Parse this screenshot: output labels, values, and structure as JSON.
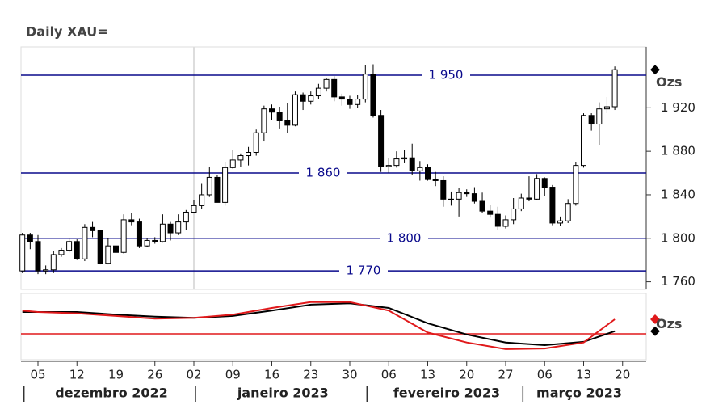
{
  "chart_data": [
    {
      "type": "candlestick",
      "title": "Daily XAU=",
      "axis_label": "Ozs",
      "x": [
        "2022-12-01",
        "2022-12-02",
        "2022-12-05",
        "2022-12-06",
        "2022-12-07",
        "2022-12-08",
        "2022-12-09",
        "2022-12-12",
        "2022-12-13",
        "2022-12-14",
        "2022-12-15",
        "2022-12-16",
        "2022-12-19",
        "2022-12-20",
        "2022-12-21",
        "2022-12-22",
        "2022-12-23",
        "2022-12-26",
        "2022-12-27",
        "2022-12-28",
        "2022-12-29",
        "2022-12-30",
        "2023-01-02",
        "2023-01-03",
        "2023-01-04",
        "2023-01-05",
        "2023-01-06",
        "2023-01-09",
        "2023-01-10",
        "2023-01-11",
        "2023-01-12",
        "2023-01-13",
        "2023-01-16",
        "2023-01-17",
        "2023-01-18",
        "2023-01-19",
        "2023-01-20",
        "2023-01-23",
        "2023-01-24",
        "2023-01-25",
        "2023-01-26",
        "2023-01-27",
        "2023-01-30",
        "2023-01-31",
        "2023-02-01",
        "2023-02-02",
        "2023-02-03",
        "2023-02-06",
        "2023-02-07",
        "2023-02-08",
        "2023-02-09",
        "2023-02-10",
        "2023-02-13",
        "2023-02-14",
        "2023-02-15",
        "2023-02-16",
        "2023-02-17",
        "2023-02-20",
        "2023-02-21",
        "2023-02-22",
        "2023-02-23",
        "2023-02-24",
        "2023-02-27",
        "2023-02-28",
        "2023-03-01",
        "2023-03-02",
        "2023-03-03",
        "2023-03-06",
        "2023-03-07",
        "2023-03-08",
        "2023-03-09",
        "2023-03-10",
        "2023-03-13",
        "2023-03-14",
        "2023-03-15",
        "2023-03-16",
        "2023-03-17"
      ],
      "open": [
        1770,
        1803,
        1797,
        1770,
        1771,
        1785,
        1789,
        1797,
        1781,
        1810,
        1807,
        1777,
        1793,
        1787,
        1817,
        1815,
        1793,
        1798,
        1797,
        1813,
        1805,
        1815,
        1824,
        1830,
        1840,
        1856,
        1833,
        1865,
        1872,
        1876,
        1879,
        1897,
        1919,
        1916,
        1908,
        1904,
        1932,
        1926,
        1931,
        1938,
        1946,
        1930,
        1928,
        1923,
        1928,
        1951,
        1913,
        1866,
        1867,
        1873,
        1874,
        1862,
        1865,
        1854,
        1853,
        1836,
        1836,
        1842,
        1841,
        1834,
        1825,
        1822,
        1811,
        1817,
        1827,
        1837,
        1836,
        1855,
        1847,
        1814,
        1816,
        1832,
        1867,
        1913,
        1905,
        1919,
        1921
      ],
      "high": [
        1805,
        1805,
        1803,
        1775,
        1788,
        1791,
        1800,
        1799,
        1813,
        1815,
        1808,
        1800,
        1795,
        1822,
        1823,
        1818,
        1800,
        1801,
        1822,
        1815,
        1822,
        1826,
        1835,
        1850,
        1866,
        1858,
        1870,
        1881,
        1878,
        1884,
        1900,
        1922,
        1923,
        1921,
        1924,
        1935,
        1934,
        1935,
        1942,
        1947,
        1949,
        1933,
        1931,
        1932,
        1959,
        1960,
        1918,
        1874,
        1880,
        1881,
        1887,
        1871,
        1868,
        1861,
        1857,
        1843,
        1846,
        1845,
        1847,
        1842,
        1831,
        1829,
        1821,
        1837,
        1841,
        1857,
        1859,
        1856,
        1849,
        1820,
        1836,
        1870,
        1915,
        1915,
        1925,
        1930,
        1958
      ],
      "low": [
        1768,
        1790,
        1767,
        1767,
        1768,
        1783,
        1787,
        1780,
        1779,
        1801,
        1776,
        1776,
        1785,
        1786,
        1812,
        1791,
        1792,
        1795,
        1796,
        1798,
        1803,
        1808,
        1823,
        1827,
        1838,
        1834,
        1830,
        1864,
        1866,
        1867,
        1876,
        1889,
        1909,
        1901,
        1897,
        1903,
        1918,
        1923,
        1928,
        1935,
        1926,
        1922,
        1919,
        1920,
        1925,
        1911,
        1861,
        1860,
        1865,
        1869,
        1858,
        1853,
        1853,
        1848,
        1829,
        1830,
        1820,
        1838,
        1832,
        1823,
        1819,
        1808,
        1809,
        1813,
        1825,
        1834,
        1835,
        1839,
        1812,
        1811,
        1814,
        1830,
        1865,
        1899,
        1886,
        1915,
        1918
      ],
      "close": [
        1803,
        1797,
        1770,
        1771,
        1785,
        1789,
        1797,
        1781,
        1810,
        1807,
        1777,
        1793,
        1787,
        1817,
        1815,
        1793,
        1798,
        1797,
        1813,
        1805,
        1815,
        1824,
        1830,
        1840,
        1856,
        1833,
        1865,
        1872,
        1876,
        1879,
        1897,
        1919,
        1916,
        1908,
        1904,
        1932,
        1926,
        1931,
        1938,
        1946,
        1930,
        1928,
        1923,
        1928,
        1951,
        1913,
        1866,
        1867,
        1873,
        1874,
        1862,
        1865,
        1854,
        1853,
        1836,
        1836,
        1842,
        1841,
        1834,
        1825,
        1822,
        1811,
        1817,
        1827,
        1837,
        1836,
        1855,
        1847,
        1814,
        1816,
        1832,
        1867,
        1913,
        1905,
        1919,
        1921,
        1955
      ],
      "levels": [
        {
          "value": 1950,
          "label": "1 950"
        },
        {
          "value": 1860,
          "label": "1 860"
        },
        {
          "value": 1800,
          "label": "1 800"
        },
        {
          "value": 1770,
          "label": "1 770"
        }
      ],
      "ylim": [
        1753,
        1976
      ],
      "yticks": [
        {
          "value": 1760,
          "label": "1 760"
        },
        {
          "value": 1800,
          "label": "1 800"
        },
        {
          "value": 1840,
          "label": "1 840"
        },
        {
          "value": 1880,
          "label": "1 880"
        },
        {
          "value": 1920,
          "label": "1 920"
        }
      ]
    },
    {
      "type": "line",
      "axis_label": "Ozs",
      "x": [
        "2022-12-01",
        "2022-12-05",
        "2022-12-12",
        "2022-12-19",
        "2022-12-26",
        "2023-01-02",
        "2023-01-09",
        "2023-01-16",
        "2023-01-23",
        "2023-01-30",
        "2023-02-06",
        "2023-02-13",
        "2023-02-20",
        "2023-02-27",
        "2023-03-06",
        "2023-03-13",
        "2023-03-17"
      ],
      "series": [
        {
          "color": "#000000",
          "values": [
            72,
            72,
            72,
            68,
            65,
            63,
            66,
            74,
            83,
            85,
            78,
            55,
            38,
            26,
            22,
            27,
            43
          ]
        },
        {
          "color": "#e0191b",
          "values": [
            74,
            72,
            70,
            66,
            62,
            63,
            68,
            78,
            87,
            87,
            74,
            41,
            26,
            16,
            17,
            26,
            61
          ]
        }
      ],
      "hline": 39,
      "hline_color": "#e0191b",
      "ylim": [
        0,
        100
      ],
      "xticks": [
        {
          "value": "2022-12-05",
          "label": "05"
        },
        {
          "value": "2022-12-12",
          "label": "12"
        },
        {
          "value": "2022-12-19",
          "label": "19"
        },
        {
          "value": "2022-12-26",
          "label": "26"
        },
        {
          "value": "2023-01-02",
          "label": "02"
        },
        {
          "value": "2023-01-09",
          "label": "09"
        },
        {
          "value": "2023-01-16",
          "label": "16"
        },
        {
          "value": "2023-01-23",
          "label": "23"
        },
        {
          "value": "2023-01-30",
          "label": "30"
        },
        {
          "value": "2023-02-06",
          "label": "06"
        },
        {
          "value": "2023-02-13",
          "label": "13"
        },
        {
          "value": "2023-02-20",
          "label": "20"
        },
        {
          "value": "2023-02-27",
          "label": "27"
        },
        {
          "value": "2023-03-06",
          "label": "06"
        },
        {
          "value": "2023-03-13",
          "label": "13"
        },
        {
          "value": "2023-03-20",
          "label": "20"
        }
      ],
      "x_groups": [
        {
          "label": "dezembro 2022",
          "from": "2022-12-01",
          "to": "2022-12-30"
        },
        {
          "label": "janeiro 2023",
          "from": "2023-01-02",
          "to": "2023-01-31"
        },
        {
          "label": "fevereiro 2023",
          "from": "2023-02-01",
          "to": "2023-02-28"
        },
        {
          "label": "março 2023",
          "from": "2023-03-01",
          "to": "2023-03-20"
        }
      ]
    }
  ]
}
